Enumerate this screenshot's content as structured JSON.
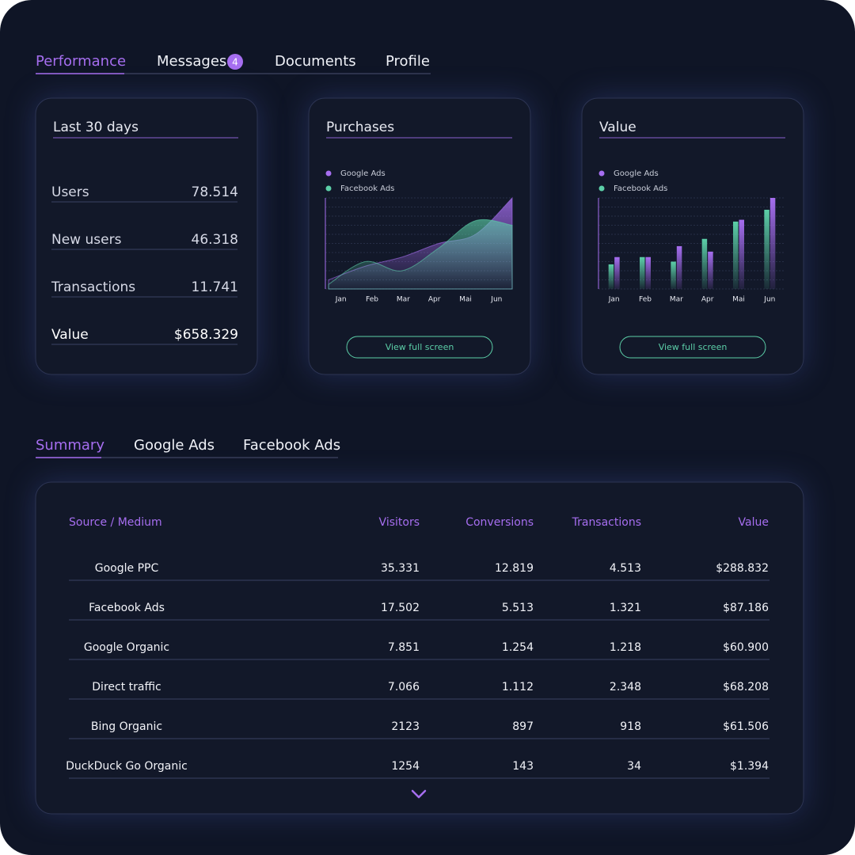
{
  "tabs": [
    "Performance",
    "Messages",
    "Documents",
    "Profile"
  ],
  "messages_badge": 4,
  "stats": {
    "title": "Last 30 days",
    "rows": [
      [
        "Users",
        "78.514"
      ],
      [
        "New users",
        "46.318"
      ],
      [
        "Transactions",
        "11.741"
      ],
      [
        "Value",
        "$658.329"
      ]
    ]
  },
  "chart_data": [
    {
      "type": "area",
      "title": "Purchases",
      "categories": [
        "Jan",
        "Feb",
        "Mar",
        "Apr",
        "Mai",
        "Jun"
      ],
      "series": [
        {
          "name": "Google Ads",
          "color": "#a66ef0",
          "values": [
            10,
            25,
            35,
            50,
            60,
            100
          ]
        },
        {
          "name": "Facebook Ads",
          "color": "#5ccfa8",
          "values": [
            5,
            30,
            20,
            45,
            75,
            70
          ]
        }
      ],
      "ylim": [
        0,
        100
      ],
      "yticks": [
        0,
        10,
        20,
        30,
        40,
        50,
        60,
        70,
        80,
        90,
        100
      ],
      "grid": true
    },
    {
      "type": "bar",
      "title": "Value",
      "categories": [
        "Jan",
        "Feb",
        "Mar",
        "Apr",
        "Mai",
        "Jun"
      ],
      "series": [
        {
          "name": "Google Ads",
          "color": "#a66ef0",
          "values": [
            35,
            35,
            47,
            41,
            76,
            100
          ]
        },
        {
          "name": "Facebook Ads",
          "color": "#5ccfa8",
          "values": [
            27,
            35,
            30,
            55,
            74,
            87
          ]
        }
      ],
      "ylim": [
        0,
        100
      ],
      "yticks": [
        0,
        10,
        20,
        30,
        40,
        50,
        60,
        70,
        80,
        90,
        100
      ],
      "grid": true
    }
  ],
  "buttons": [
    "View full screen",
    "View full screen"
  ],
  "summary_tabs": [
    "Summary",
    "Google Ads",
    "Facebook Ads"
  ],
  "table": {
    "header": [
      "Source / Medium",
      "Visitors",
      "Conversions",
      "Transactions",
      "Value"
    ],
    "rows": [
      [
        "Google PPC",
        "35.331",
        "12.819",
        "4.513",
        "$288.832"
      ],
      [
        "Facebook Ads",
        "17.502",
        "5.513",
        "1.321",
        "$87.186"
      ],
      [
        "Google Organic",
        "7.851",
        "1.254",
        "1.218",
        "$60.900"
      ],
      [
        "Direct traffic",
        "7.066",
        "1.112",
        "2.348",
        "$68.208"
      ],
      [
        "Bing Organic",
        "2123",
        "897",
        "918",
        "$61.506"
      ],
      [
        "DuckDuck Go Organic",
        "1254",
        "143",
        "34",
        "$1.394"
      ]
    ]
  }
}
